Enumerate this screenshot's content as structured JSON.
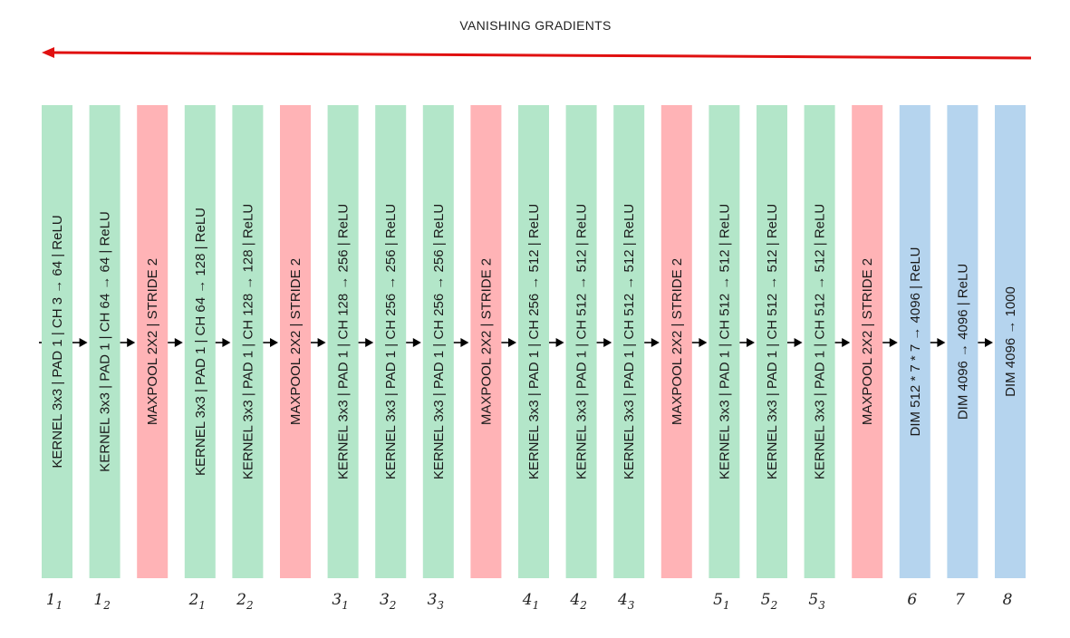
{
  "title": "VANISHING GRADIENTS",
  "colors": {
    "conv": "#b3e6c9",
    "pool": "#ffb3b6",
    "fc": "#b5d4ee",
    "gradient_arrow": "#e01010",
    "flow_arrow": "#000000"
  },
  "layers": [
    {
      "type": "conv",
      "text": "KERNEL 3x3 | PAD 1 | CH 3 → 64 | ReLU",
      "index": {
        "main": "1",
        "sub": "1"
      }
    },
    {
      "type": "conv",
      "text": "KERNEL 3x3 | PAD 1 | CH 64 → 64 | ReLU",
      "index": {
        "main": "1",
        "sub": "2"
      }
    },
    {
      "type": "pool",
      "text": "MAXPOOL 2X2 | STRIDE 2",
      "index": null
    },
    {
      "type": "conv",
      "text": "KERNEL 3x3 | PAD 1 | CH 64 → 128 | ReLU",
      "index": {
        "main": "2",
        "sub": "1"
      }
    },
    {
      "type": "conv",
      "text": "KERNEL 3x3 | PAD 1 | CH 128 → 128 | ReLU",
      "index": {
        "main": "2",
        "sub": "2"
      }
    },
    {
      "type": "pool",
      "text": "MAXPOOL 2X2 | STRIDE 2",
      "index": null
    },
    {
      "type": "conv",
      "text": "KERNEL 3x3 | PAD 1 | CH 128 → 256 | ReLU",
      "index": {
        "main": "3",
        "sub": "1"
      }
    },
    {
      "type": "conv",
      "text": "KERNEL 3x3 | PAD 1 | CH 256 → 256 | ReLU",
      "index": {
        "main": "3",
        "sub": "2"
      }
    },
    {
      "type": "conv",
      "text": "KERNEL 3x3 | PAD 1 | CH 256 → 256 | ReLU",
      "index": {
        "main": "3",
        "sub": "3"
      }
    },
    {
      "type": "pool",
      "text": "MAXPOOL 2X2 | STRIDE 2",
      "index": null
    },
    {
      "type": "conv",
      "text": "KERNEL 3x3 | PAD 1 | CH 256 → 512 | ReLU",
      "index": {
        "main": "4",
        "sub": "1"
      }
    },
    {
      "type": "conv",
      "text": "KERNEL 3x3 | PAD 1 | CH 512 → 512 | ReLU",
      "index": {
        "main": "4",
        "sub": "2"
      }
    },
    {
      "type": "conv",
      "text": "KERNEL 3x3 | PAD 1 | CH 512 → 512 | ReLU",
      "index": {
        "main": "4",
        "sub": "3"
      }
    },
    {
      "type": "pool",
      "text": "MAXPOOL 2X2 | STRIDE 2",
      "index": null
    },
    {
      "type": "conv",
      "text": "KERNEL 3x3 | PAD 1 | CH 512 → 512 | ReLU",
      "index": {
        "main": "5",
        "sub": "1"
      }
    },
    {
      "type": "conv",
      "text": "KERNEL 3x3 | PAD 1 | CH 512 → 512 | ReLU",
      "index": {
        "main": "5",
        "sub": "2"
      }
    },
    {
      "type": "conv",
      "text": "KERNEL 3x3 | PAD 1 | CH 512 → 512 | ReLU",
      "index": {
        "main": "5",
        "sub": "3"
      }
    },
    {
      "type": "pool",
      "text": "MAXPOOL 2X2 | STRIDE 2",
      "index": null
    },
    {
      "type": "fc",
      "text": "DIM 512 * 7 * 7 → 4096 | ReLU",
      "index": {
        "main": "6",
        "sub": ""
      }
    },
    {
      "type": "fc",
      "text": "DIM 4096 → 4096 | ReLU",
      "index": {
        "main": "7",
        "sub": ""
      }
    },
    {
      "type": "fc",
      "text": "DIM 4096 → 1000",
      "index": {
        "main": "8",
        "sub": ""
      }
    }
  ]
}
